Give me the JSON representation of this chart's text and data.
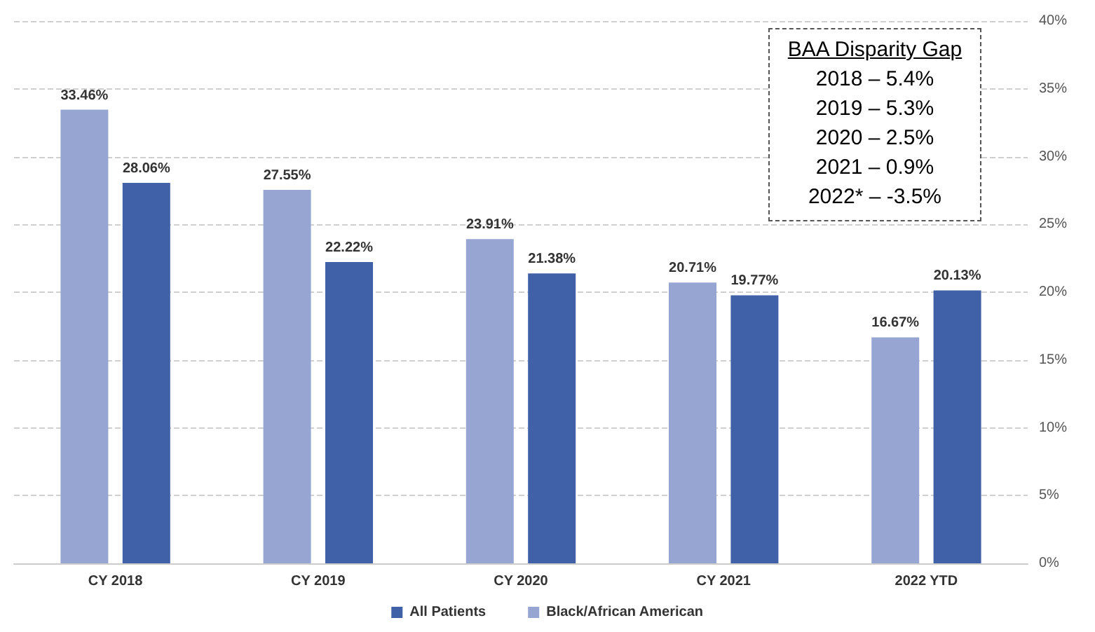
{
  "chart_data": {
    "type": "bar",
    "categories": [
      "CY 2018",
      "CY 2019",
      "CY 2020",
      "CY 2021",
      "2022 YTD"
    ],
    "series": [
      {
        "name": "Black/African American",
        "color": "#97a5d3",
        "values": [
          33.46,
          27.55,
          23.91,
          20.71,
          16.67
        ],
        "value_labels": [
          "33.46%",
          "27.55%",
          "23.91%",
          "20.71%",
          "16.67%"
        ]
      },
      {
        "name": "All Patients",
        "color": "#4060a8",
        "values": [
          28.06,
          22.22,
          21.38,
          19.77,
          20.13
        ],
        "value_labels": [
          "28.06%",
          "22.22%",
          "21.38%",
          "19.77%",
          "20.13%"
        ]
      }
    ],
    "ylim": [
      0,
      40
    ],
    "yticks": [
      {
        "value": 0,
        "label": "0%"
      },
      {
        "value": 5,
        "label": "5%"
      },
      {
        "value": 10,
        "label": "10%"
      },
      {
        "value": 15,
        "label": "15%"
      },
      {
        "value": 20,
        "label": "20%"
      },
      {
        "value": 25,
        "label": "25%"
      },
      {
        "value": 30,
        "label": "30%"
      },
      {
        "value": 35,
        "label": "35%"
      },
      {
        "value": 40,
        "label": "40%"
      }
    ],
    "grid": "y",
    "legend": "bottom",
    "annotations": [
      "BAA Disparity Gap",
      "2018 – 5.4%",
      "2019 – 5.3%",
      "2020 – 2.5%",
      "2021 – 0.9%",
      "2022* – -3.5%"
    ]
  }
}
